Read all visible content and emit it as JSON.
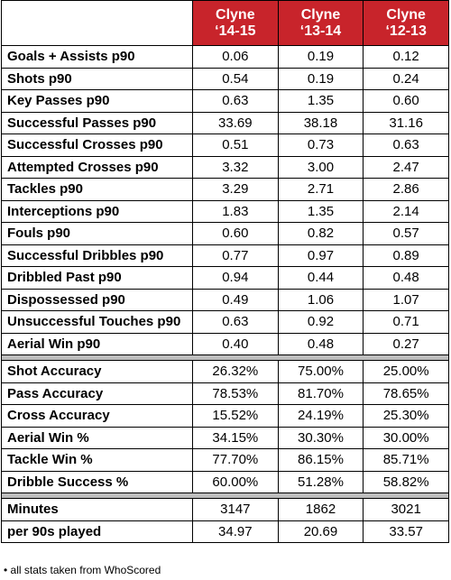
{
  "header": {
    "columns": [
      {
        "name": "Clyne",
        "season": "‘14-15"
      },
      {
        "name": "Clyne",
        "season": "‘13-14"
      },
      {
        "name": "Clyne",
        "season": "‘12-13"
      }
    ]
  },
  "sections": [
    {
      "rows": [
        [
          "Goals + Assists p90",
          "0.06",
          "0.19",
          "0.12"
        ],
        [
          "Shots p90",
          "0.54",
          "0.19",
          "0.24"
        ],
        [
          "Key Passes p90",
          "0.63",
          "1.35",
          "0.60"
        ],
        [
          "Successful Passes p90",
          "33.69",
          "38.18",
          "31.16"
        ],
        [
          "Successful Crosses p90",
          "0.51",
          "0.73",
          "0.63"
        ],
        [
          "Attempted Crosses p90",
          "3.32",
          "3.00",
          "2.47"
        ],
        [
          "Tackles p90",
          "3.29",
          "2.71",
          "2.86"
        ],
        [
          "Interceptions p90",
          "1.83",
          "1.35",
          "2.14"
        ],
        [
          "Fouls p90",
          "0.60",
          "0.82",
          "0.57"
        ],
        [
          "Successful Dribbles p90",
          "0.77",
          "0.97",
          "0.89"
        ],
        [
          "Dribbled Past p90",
          "0.94",
          "0.44",
          "0.48"
        ],
        [
          "Dispossessed p90",
          "0.49",
          "1.06",
          "1.07"
        ],
        [
          "Unsuccessful Touches p90",
          "0.63",
          "0.92",
          "0.71"
        ],
        [
          "Aerial Win p90",
          "0.40",
          "0.48",
          "0.27"
        ]
      ]
    },
    {
      "rows": [
        [
          "Shot Accuracy",
          "26.32%",
          "75.00%",
          "25.00%"
        ],
        [
          "Pass Accuracy",
          "78.53%",
          "81.70%",
          "78.65%"
        ],
        [
          "Cross Accuracy",
          "15.52%",
          "24.19%",
          "25.30%"
        ],
        [
          "Aerial Win %",
          "34.15%",
          "30.30%",
          "30.00%"
        ],
        [
          "Tackle Win %",
          "77.70%",
          "86.15%",
          "85.71%"
        ],
        [
          "Dribble Success %",
          "60.00%",
          "51.28%",
          "58.82%"
        ]
      ]
    },
    {
      "rows": [
        [
          "Minutes",
          "3147",
          "1862",
          "3021"
        ],
        [
          "per 90s played",
          "34.97",
          "20.69",
          "33.57"
        ]
      ]
    }
  ],
  "footnote": "• all stats taken from WhoScored"
}
